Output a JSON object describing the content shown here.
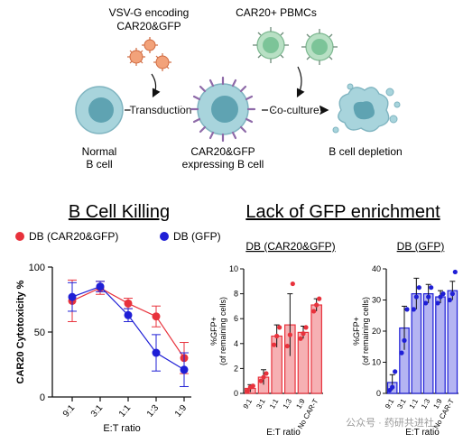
{
  "schematic": {
    "virus_label_1": "VSV-G encoding",
    "virus_label_2": "CAR20&GFP",
    "pbmc_label": "CAR20+ PBMCs",
    "transduction_label": "Transduction",
    "coculture_label": "Co-culture",
    "normal_label_1": "Normal",
    "normal_label_2": "B cell",
    "car_label_1": "CAR20&GFP",
    "car_label_2": "expressing B cell",
    "depletion_label": "B cell depletion"
  },
  "section_titles": {
    "killing": "B Cell Killing",
    "gfp": "Lack of GFP enrichment"
  },
  "watermark": "公众号 · 药研共进社",
  "colors": {
    "red": "#e8323c",
    "blue": "#1f1fd6",
    "red_fill": "#f4a0a4",
    "blue_fill": "#a8a8f0"
  },
  "chart_data": [
    {
      "type": "line",
      "title": "B Cell Killing",
      "xlabel": "E:T ratio",
      "ylabel": "CAR20 Cytotoxicity %",
      "categories": [
        "9:1",
        "3:1",
        "1:1",
        "1:3",
        "1:9"
      ],
      "ylim": [
        0,
        100
      ],
      "yticks": [
        "0",
        "50",
        "100"
      ],
      "legend_position": "top",
      "series": [
        {
          "name": "DB (CAR20&GFP)",
          "color": "#e8323c",
          "values": [
            74,
            84,
            72,
            62,
            30
          ],
          "err": [
            16,
            5,
            4,
            8,
            12
          ]
        },
        {
          "name": "DB (GFP)",
          "color": "#1f1fd6",
          "values": [
            77,
            85,
            63,
            34,
            21
          ],
          "err": [
            11,
            4,
            5,
            14,
            13
          ]
        }
      ]
    },
    {
      "type": "bar",
      "title": "DB (CAR20&GFP)",
      "xlabel": "E:T ratio",
      "ylabel": "%GFP+",
      "ylabel2": "(of remaining cells)",
      "categories": [
        "9:1",
        "3:1",
        "1:1",
        "1:3",
        "1:9",
        "No CAR-T"
      ],
      "values": [
        0.4,
        1.3,
        4.6,
        5.5,
        4.9,
        7.1
      ],
      "err": [
        0.3,
        0.6,
        0.9,
        2.5,
        0.5,
        0.5
      ],
      "points": [
        [
          0.2,
          0.5,
          0.6
        ],
        [
          1,
          1.3,
          1.6
        ],
        [
          3.9,
          4.6,
          5.3
        ],
        [
          3.8,
          4.7,
          8.8
        ],
        [
          4.4,
          4.8,
          5.3
        ],
        [
          6.6,
          7.1,
          7.6
        ]
      ],
      "ylim": [
        0,
        10
      ],
      "yticks": [
        "0",
        "2",
        "4",
        "6",
        "8",
        "10"
      ],
      "color": "#e8323c"
    },
    {
      "type": "bar",
      "title": "DB (GFP)",
      "xlabel": "E:T ratio",
      "ylabel": "%GFP+",
      "ylabel2": "(of remaining cells)",
      "categories": [
        "9:1",
        "3:1",
        "1:1",
        "1:3",
        "1:9",
        "No CAR-T"
      ],
      "values": [
        3.5,
        21,
        32,
        32,
        31,
        33
      ],
      "err": [
        2.5,
        7,
        5,
        3,
        2,
        3
      ],
      "points": [
        [
          1,
          2,
          7
        ],
        [
          13,
          17,
          27
        ],
        [
          27,
          31,
          34
        ],
        [
          29,
          31,
          34
        ],
        [
          29,
          31,
          32
        ],
        [
          30,
          32,
          39
        ]
      ],
      "ylim": [
        0,
        40
      ],
      "yticks": [
        "0",
        "10",
        "20",
        "30",
        "40"
      ],
      "color": "#1f1fd6"
    }
  ]
}
